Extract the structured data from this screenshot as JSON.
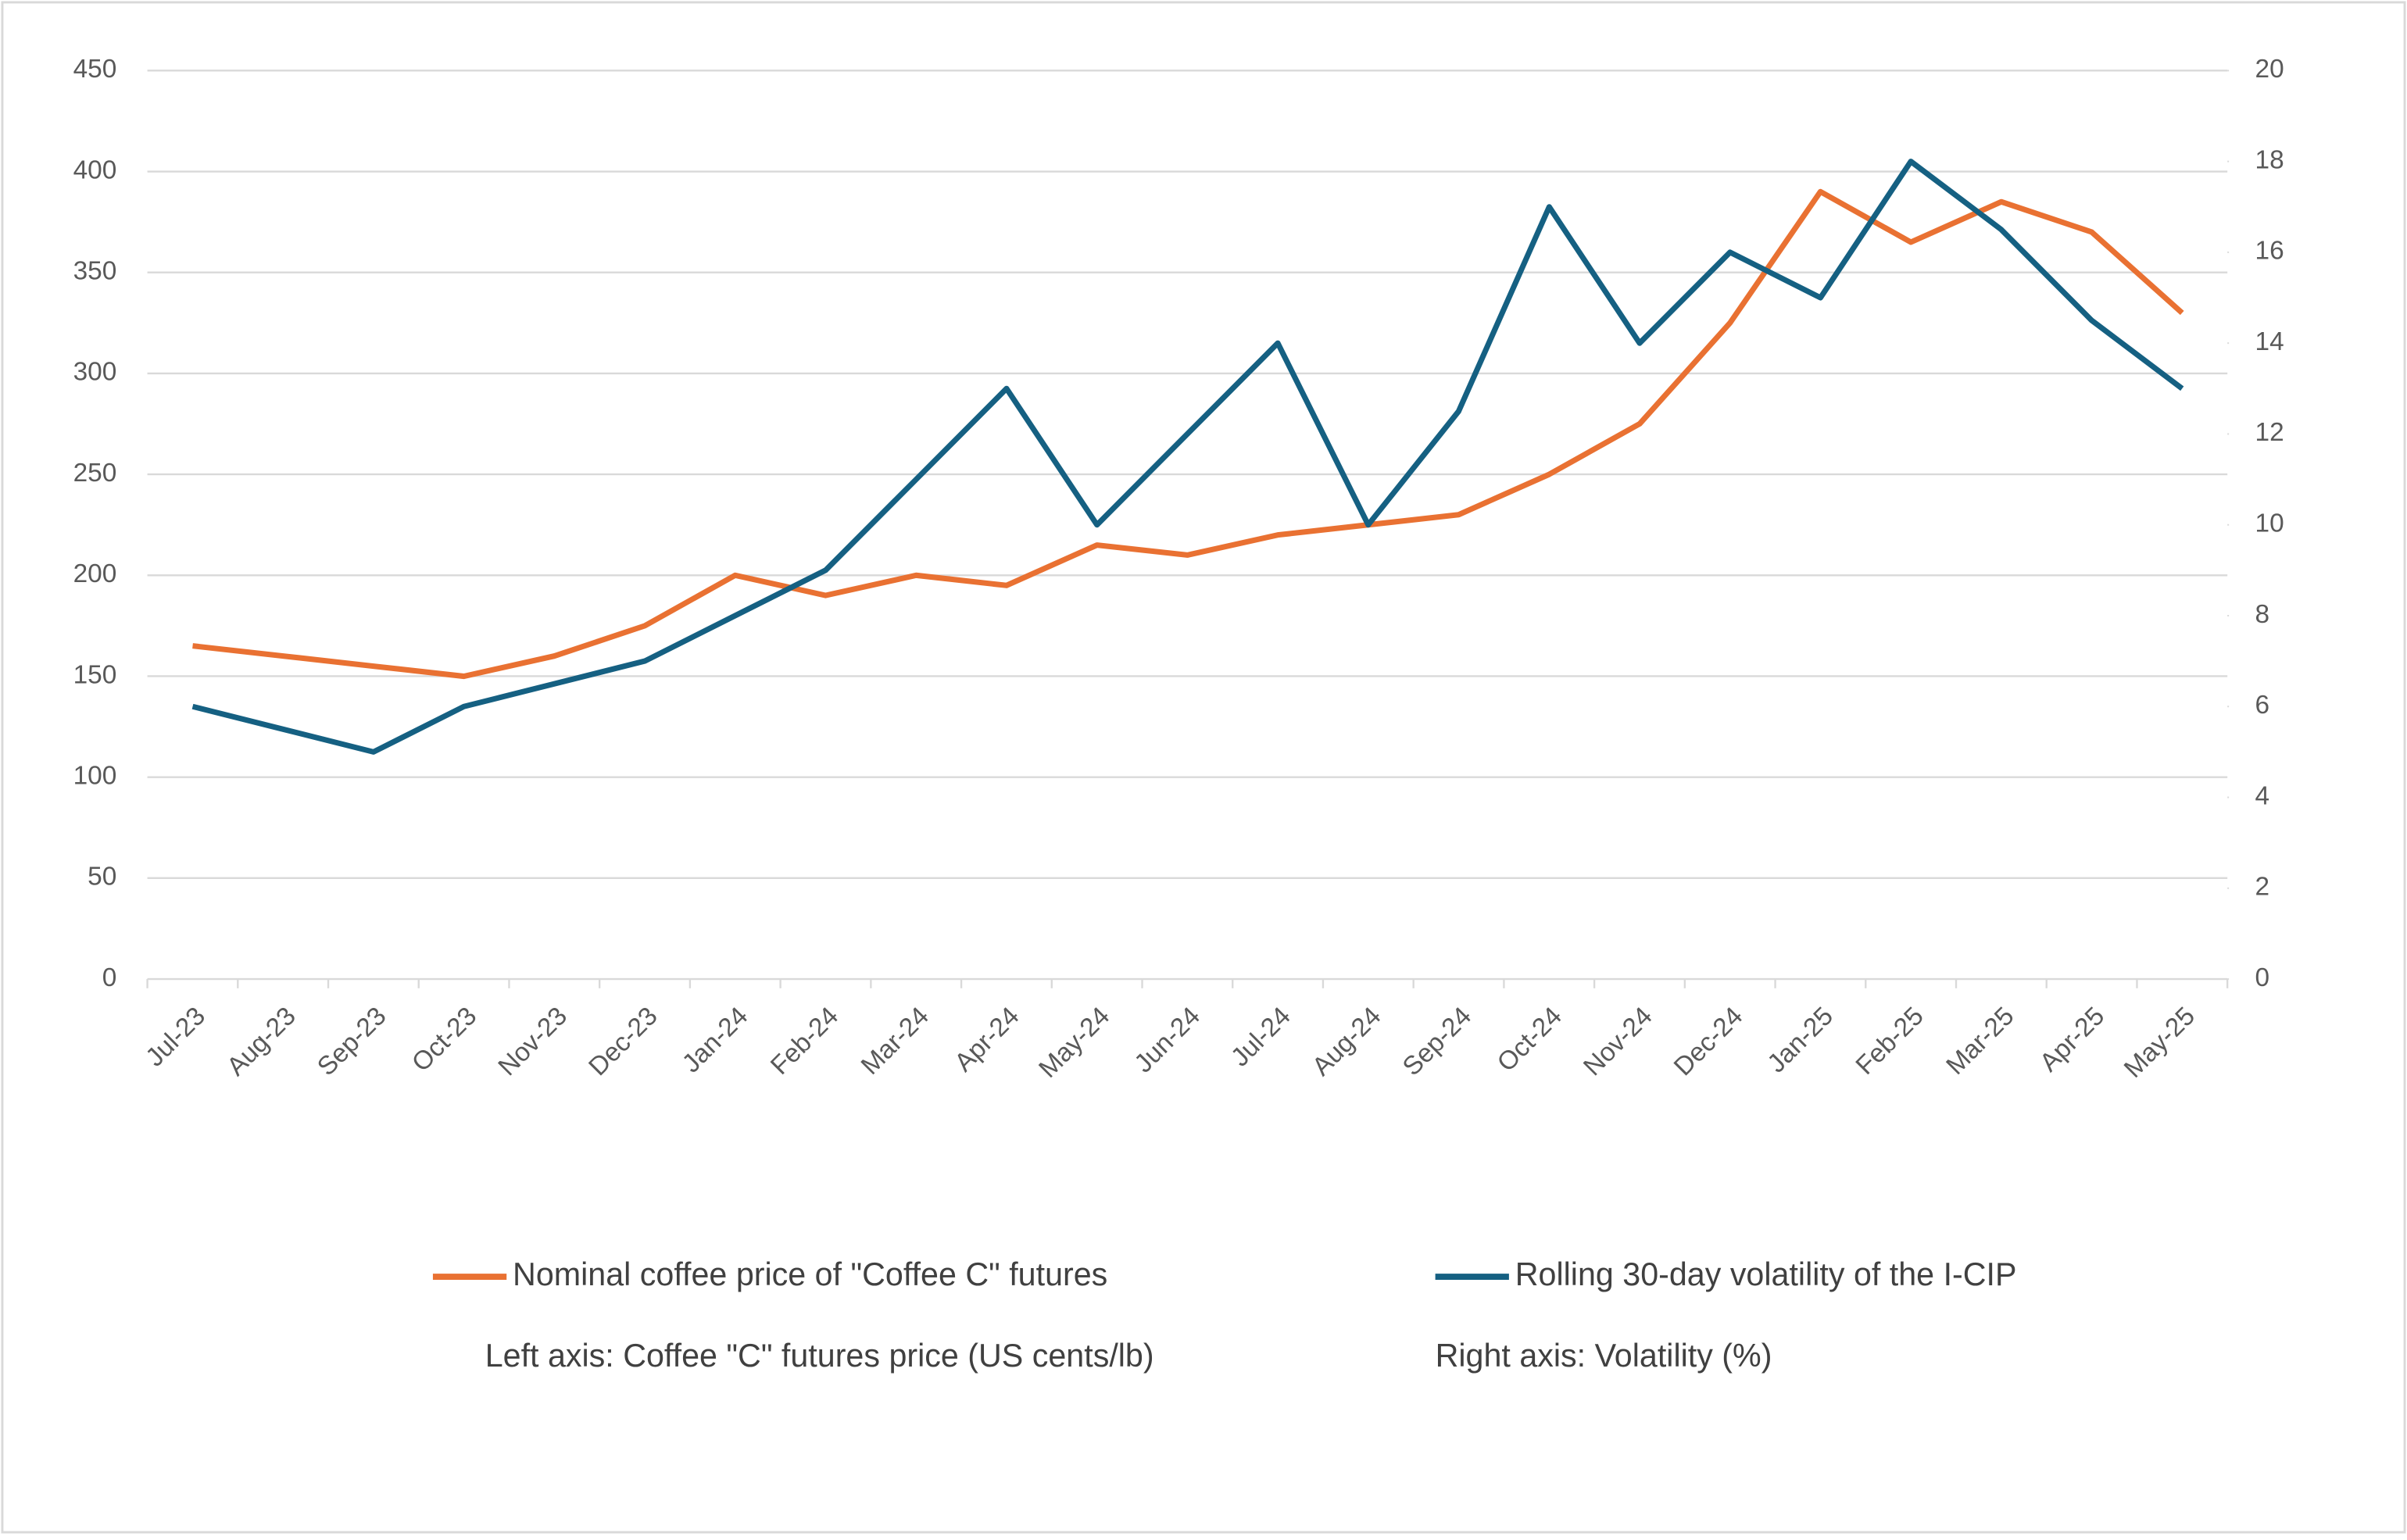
{
  "chart_data": {
    "type": "line",
    "categories": [
      "Jul-23",
      "Aug-23",
      "Sep-23",
      "Oct-23",
      "Nov-23",
      "Dec-23",
      "Jan-24",
      "Feb-24",
      "Mar-24",
      "Apr-24",
      "May-24",
      "Jun-24",
      "Jul-24",
      "Aug-24",
      "Sep-24",
      "Oct-24",
      "Nov-24",
      "Dec-24",
      "Jan-25",
      "Feb-25",
      "Mar-25",
      "Apr-25",
      "May-25"
    ],
    "series": [
      {
        "name": "Nominal coffee price of \"Coffee C\" futures",
        "color": "#e97132",
        "axis": "y",
        "values": [
          165,
          160,
          155,
          150,
          160,
          175,
          200,
          190,
          200,
          195,
          215,
          210,
          220,
          225,
          230,
          250,
          275,
          325,
          390,
          365,
          385,
          370,
          330
        ]
      },
      {
        "name": "Rolling 30-day volatility of the I-CIP",
        "color": "#156082",
        "axis": "y2",
        "values": [
          6,
          5.5,
          5,
          6,
          6.5,
          7,
          8,
          9,
          11,
          13,
          10,
          12,
          14,
          10,
          12.5,
          17,
          14,
          16,
          15,
          18,
          16.5,
          14.5,
          13
        ]
      }
    ],
    "ylim": [
      0,
      450
    ],
    "yticks": [
      0,
      50,
      100,
      150,
      200,
      250,
      300,
      350,
      400,
      450
    ],
    "y2lim": [
      0,
      20
    ],
    "y2ticks": [
      0,
      2,
      4,
      6,
      8,
      10,
      12,
      14,
      16,
      18,
      20
    ],
    "y_axis_label": "Left axis: Coffee \"C\" futures price (US cents/lb)",
    "y2_axis_label": "Right axis: Volatility (%)",
    "grid": true,
    "legend": "bottom"
  }
}
